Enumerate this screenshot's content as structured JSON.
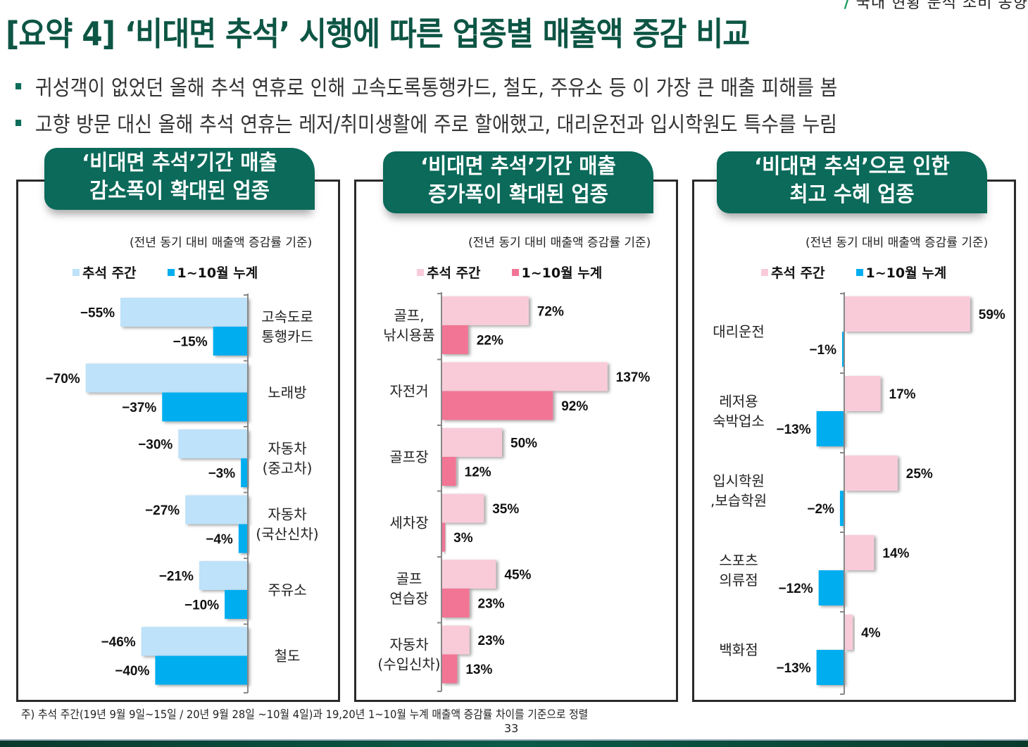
{
  "header": {
    "top_right_text": "국내 현황 분석 소비 동향",
    "title": "[요약 4] ‘비대면 추석’ 시행에 따른 업종별 매출액 증감 비교"
  },
  "bullets": [
    "귀성객이 없었던 올해 추석 연휴로 인해 고속도록통행카드, 철도, 주유소 등 이 가장 큰 매출 피해를 봄",
    "고향 방문 대신 올해 추석 연휴는 레저/취미생활에 주로 할애했고, 대리운전과 입시학원도 특수를 누림"
  ],
  "colors": {
    "title_green": "#0d5544",
    "badge_green": "#0b6a5a",
    "light_blue": "#bde2fa",
    "blue": "#00aeef",
    "light_pink": "#f9cbd9",
    "pink": "#f27596"
  },
  "chart_data": [
    {
      "type": "bar",
      "orientation": "horizontal",
      "title": "‘비대면 추석’기간 매출 감소폭이 확대된 업종",
      "title_lines": [
        "‘비대면 추석’기간 매출",
        "감소폭이 확대된 업종"
      ],
      "note": "(전년 동기 대비 매출액 증감률 기준)",
      "unit": "%",
      "categories": [
        [
          "고속도로",
          "통행카드"
        ],
        [
          "노래방"
        ],
        [
          "자동차",
          "(중고차)"
        ],
        [
          "자동차",
          "(국산신차)"
        ],
        [
          "주유소"
        ],
        [
          "철도"
        ]
      ],
      "series": [
        {
          "name": "추석 주간",
          "color": "#bde2fa",
          "values": [
            -55,
            -70,
            -30,
            -27,
            -21,
            -46
          ]
        },
        {
          "name": "1~10월 누계",
          "color": "#00aeef",
          "values": [
            -15,
            -37,
            -3,
            -4,
            -10,
            -40
          ]
        }
      ],
      "legend_position": "top-left",
      "xlim": [
        -70,
        0
      ]
    },
    {
      "type": "bar",
      "orientation": "horizontal",
      "title": "‘비대면 추석’기간 매출 증가폭이 확대된 업종",
      "title_lines": [
        "‘비대면 추석’기간 매출",
        "증가폭이 확대된 업종"
      ],
      "note": "(전년 동기 대비 매출액 증감률 기준)",
      "unit": "%",
      "categories": [
        [
          "골프,",
          "낚시용품"
        ],
        [
          "자전거"
        ],
        [
          "골프장"
        ],
        [
          "세차장"
        ],
        [
          "골프",
          "연습장"
        ],
        [
          "자동차",
          "(수입신차)"
        ]
      ],
      "series": [
        {
          "name": "추석 주간",
          "color": "#f9cbd9",
          "values": [
            72,
            137,
            50,
            35,
            45,
            23
          ]
        },
        {
          "name": "1~10월 누계",
          "color": "#f27596",
          "values": [
            22,
            92,
            12,
            3,
            23,
            13
          ]
        }
      ],
      "legend_position": "top-left",
      "xlim": [
        0,
        137
      ]
    },
    {
      "type": "bar",
      "orientation": "horizontal",
      "title": "‘비대면 추석’으로 인한 최고 수혜 업종",
      "title_lines": [
        "‘비대면 추석’으로 인한",
        "최고 수혜 업종"
      ],
      "note": "(전년 동기 대비 매출액 증감률 기준)",
      "unit": "%",
      "categories": [
        [
          "대리운전"
        ],
        [
          "레저용",
          "숙박업소"
        ],
        [
          "입시학원",
          ",보습학원"
        ],
        [
          "스포츠",
          "의류점"
        ],
        [
          "백화점"
        ]
      ],
      "series": [
        {
          "name": "추석 주간",
          "color": "#f9cbd9",
          "values": [
            59,
            17,
            25,
            14,
            4
          ]
        },
        {
          "name": "1~10월 누계",
          "color": "#00aeef",
          "values": [
            -1,
            -13,
            -2,
            -12,
            -13
          ]
        }
      ],
      "legend_position": "top-left",
      "xlim": [
        -13,
        59
      ]
    }
  ],
  "footer": {
    "footnote": "주) 추석 주간(19년 9월 9일~15일 / 20년 9월 28일 ~10월 4일)과 19,20년 1~10월 누계 매출액 증감률 차이를 기준으로 정렬",
    "page_number": "33"
  }
}
